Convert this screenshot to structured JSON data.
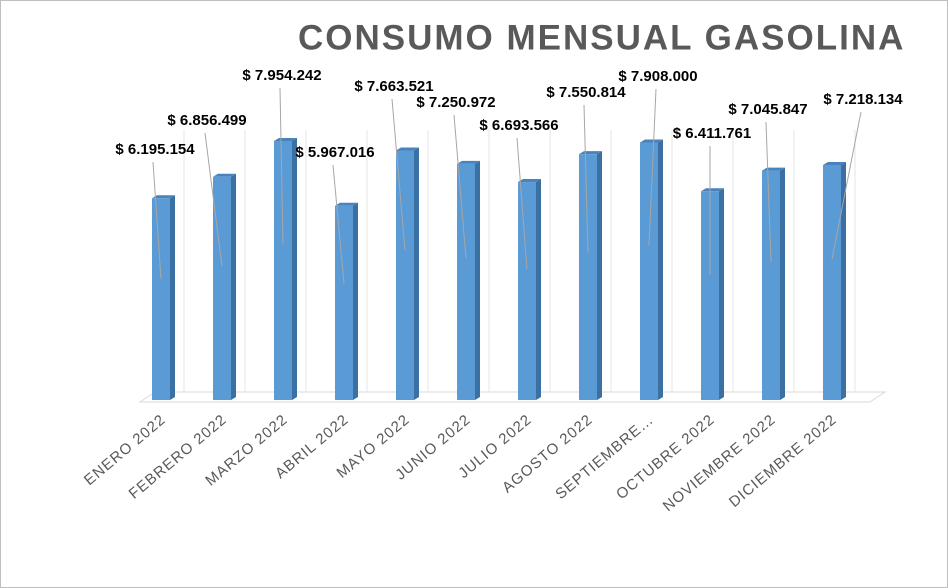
{
  "chart_data": {
    "type": "bar3d",
    "title": "CONSUMO MENSUAL GASOLINA",
    "categories": [
      "ENERO 2022",
      "FEBRERO 2022",
      "MARZO 2022",
      "ABRIL 2022",
      "MAYO 2022",
      "JUNIO 2022",
      "JULIO 2022",
      "AGOSTO 2022",
      "SEPTIEMBRE…",
      "OCTUBRE 2022",
      "NOVIEMBRE 2022",
      "DICIEMBRE 2022"
    ],
    "values": [
      6195154,
      6856499,
      7954242,
      5967016,
      7663521,
      7250972,
      6693566,
      7550814,
      7908000,
      6411761,
      7045847,
      7218134
    ],
    "value_labels": [
      "$ 6.195.154",
      "$ 6.856.499",
      "$ 7.954.242",
      "$ 5.967.016",
      "$ 7.663.521",
      "$ 7.250.972",
      "$ 6.693.566",
      "$ 7.550.814",
      "$ 7.908.000",
      "$ 6.411.761",
      "$ 7.045.847",
      "$ 7.218.134"
    ],
    "color": "#5b9bd5"
  }
}
